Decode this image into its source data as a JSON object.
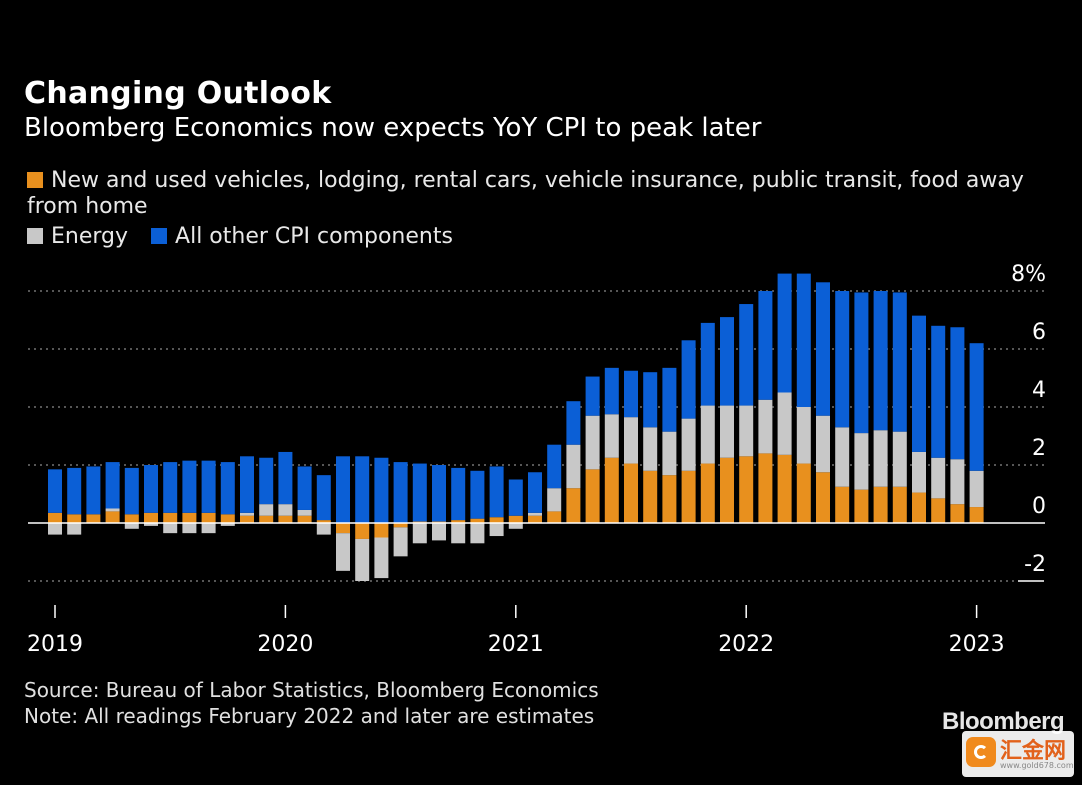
{
  "header": {
    "title": "Changing Outlook",
    "subtitle": "Bloomberg Economics now expects YoY CPI to peak later"
  },
  "footer": {
    "source": "Source: Bureau of Labor Statistics, Bloomberg Economics",
    "note": "Note: All readings February 2022 and later are estimates"
  },
  "brand": "Bloomberg",
  "watermark": {
    "text": "汇金网",
    "url": "www.gold678.com"
  },
  "colors": {
    "background": "#000000",
    "vehicles": "#e8901e",
    "energy": "#c8c8c8",
    "other": "#0b5fd6",
    "grid": "#8a8a8a"
  },
  "chart_data": {
    "type": "bar",
    "stacked": true,
    "title": "Changing Outlook",
    "subtitle": "Bloomberg Economics now expects YoY CPI to peak later",
    "xlabel": "",
    "ylabel": "",
    "ylim": [
      -2,
      8
    ],
    "y_ticks": [
      {
        "value": 8,
        "label": "8%"
      },
      {
        "value": 6,
        "label": "6"
      },
      {
        "value": 4,
        "label": "4"
      },
      {
        "value": 2,
        "label": "2"
      },
      {
        "value": 0,
        "label": "0"
      },
      {
        "value": -2,
        "label": "-2"
      }
    ],
    "x_ticks": [
      "2019",
      "2020",
      "2021",
      "2022",
      "2023"
    ],
    "categories": [
      "Jan 2019",
      "Feb 2019",
      "Mar 2019",
      "Apr 2019",
      "May 2019",
      "Jun 2019",
      "Jul 2019",
      "Aug 2019",
      "Sep 2019",
      "Oct 2019",
      "Nov 2019",
      "Dec 2019",
      "Jan 2020",
      "Feb 2020",
      "Mar 2020",
      "Apr 2020",
      "May 2020",
      "Jun 2020",
      "Jul 2020",
      "Aug 2020",
      "Sep 2020",
      "Oct 2020",
      "Nov 2020",
      "Dec 2020",
      "Jan 2021",
      "Feb 2021",
      "Mar 2021",
      "Apr 2021",
      "May 2021",
      "Jun 2021",
      "Jul 2021",
      "Aug 2021",
      "Sep 2021",
      "Oct 2021",
      "Nov 2021",
      "Dec 2021",
      "Jan 2022",
      "Feb 2022",
      "Mar 2022",
      "Apr 2022",
      "May 2022",
      "Jun 2022",
      "Jul 2022",
      "Aug 2022",
      "Sep 2022",
      "Oct 2022",
      "Nov 2022",
      "Dec 2022",
      "Jan 2023"
    ],
    "series": [
      {
        "name": "New and used vehicles, lodging, rental cars, vehicle insurance, public transit, food away from home",
        "color": "#e8901e",
        "values": [
          0.35,
          0.3,
          0.3,
          0.4,
          0.3,
          0.35,
          0.35,
          0.35,
          0.35,
          0.3,
          0.25,
          0.25,
          0.25,
          0.25,
          0.1,
          -0.35,
          -0.55,
          -0.5,
          -0.15,
          0.05,
          0.05,
          0.1,
          0.15,
          0.2,
          0.25,
          0.25,
          0.4,
          1.2,
          1.85,
          2.25,
          2.05,
          1.8,
          1.65,
          1.8,
          2.05,
          2.25,
          2.3,
          2.4,
          2.35,
          2.05,
          1.75,
          1.25,
          1.15,
          1.25,
          1.25,
          1.05,
          0.85,
          0.65,
          0.55
        ]
      },
      {
        "name": "Energy",
        "color": "#c8c8c8",
        "values": [
          -0.4,
          -0.4,
          0.0,
          0.1,
          -0.2,
          -0.1,
          -0.35,
          -0.35,
          -0.35,
          -0.1,
          0.1,
          0.4,
          0.4,
          0.2,
          -0.4,
          -1.3,
          -1.45,
          -1.4,
          -1.0,
          -0.7,
          -0.6,
          -0.7,
          -0.7,
          -0.45,
          -0.2,
          0.1,
          0.8,
          1.5,
          1.85,
          1.5,
          1.6,
          1.5,
          1.5,
          1.8,
          2.0,
          1.8,
          1.75,
          1.85,
          2.15,
          1.95,
          1.95,
          2.05,
          1.95,
          1.95,
          1.9,
          1.4,
          1.4,
          1.55,
          1.25
        ]
      },
      {
        "name": "All other CPI components",
        "color": "#0b5fd6",
        "values": [
          1.5,
          1.6,
          1.65,
          1.6,
          1.6,
          1.65,
          1.75,
          1.8,
          1.8,
          1.8,
          1.95,
          1.6,
          1.8,
          1.5,
          1.55,
          2.3,
          2.3,
          2.25,
          2.1,
          2.0,
          1.95,
          1.8,
          1.65,
          1.75,
          1.25,
          1.4,
          1.5,
          1.5,
          1.35,
          1.6,
          1.6,
          1.9,
          2.2,
          2.7,
          2.85,
          3.05,
          3.5,
          3.75,
          4.1,
          4.6,
          4.6,
          4.7,
          4.85,
          4.8,
          4.8,
          4.7,
          4.55,
          4.55,
          4.4
        ]
      }
    ],
    "legend": {
      "position": "top",
      "entries": [
        "New and used vehicles, lodging, rental cars, vehicle insurance, public transit, food away from home",
        "Energy",
        "All other CPI components"
      ]
    },
    "grid": {
      "horizontal": true,
      "style": "dotted"
    }
  }
}
